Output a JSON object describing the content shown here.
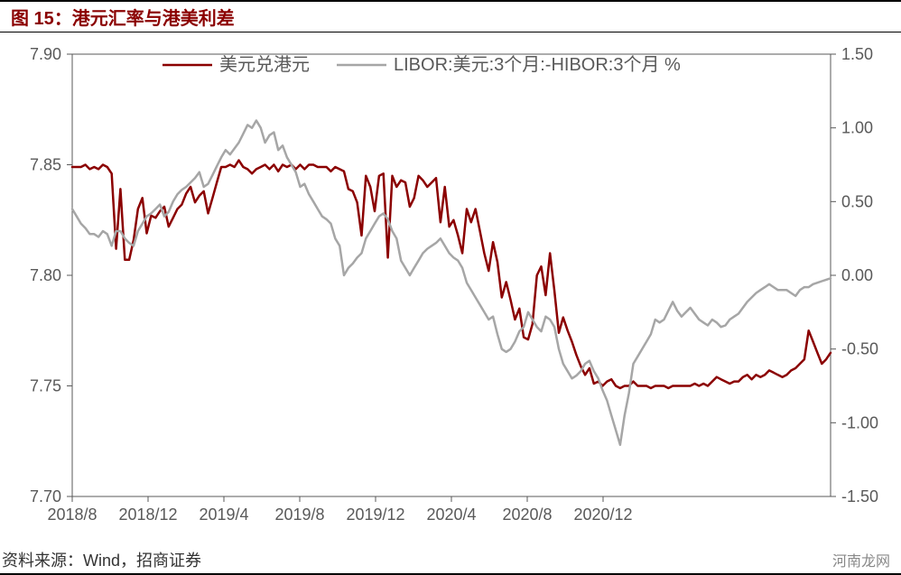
{
  "title": "图 15：港元汇率与港美利差",
  "source_label": "资料来源：Wind，招商证券",
  "watermark": "河南龙网",
  "chart": {
    "type": "line-dual-axis",
    "background_color": "#ffffff",
    "plot_border_color": "#595959",
    "plot_border_width": 1,
    "grid_color": "#d9d9d9",
    "tick_color": "#595959",
    "tick_length": 6,
    "axis_label_fontsize": 18,
    "legend_fontsize": 20,
    "legend": {
      "position": "top-inside",
      "items": [
        {
          "label": "美元兑港元",
          "color": "#8b0000",
          "line_width": 2.5
        },
        {
          "label": "LIBOR:美元:3个月:-HIBOR:3个月 %",
          "color": "#a6a6a6",
          "line_width": 2.5
        }
      ]
    },
    "x_axis": {
      "categories": [
        "2018/8",
        "2018/12",
        "2019/4",
        "2019/8",
        "2019/12",
        "2020/4",
        "2020/8",
        "2020/12"
      ],
      "ticks_between_last_and_end": 3
    },
    "y_left": {
      "min": 7.7,
      "max": 7.9,
      "step": 0.05,
      "labels": [
        "7.70",
        "7.75",
        "7.80",
        "7.85",
        "7.90"
      ],
      "color": "#595959"
    },
    "y_right": {
      "min": -1.5,
      "max": 1.5,
      "step": 0.5,
      "labels": [
        "-1.50",
        "-1.00",
        "-0.50",
        "0.00",
        "0.50",
        "1.00",
        "1.50"
      ],
      "color": "#595959"
    },
    "series": [
      {
        "name": "usd_hkd",
        "axis": "left",
        "color": "#8b0000",
        "line_width": 2.5,
        "data": [
          7.849,
          7.849,
          7.849,
          7.85,
          7.848,
          7.849,
          7.848,
          7.85,
          7.849,
          7.846,
          7.812,
          7.839,
          7.807,
          7.807,
          7.816,
          7.83,
          7.835,
          7.819,
          7.827,
          7.826,
          7.829,
          7.831,
          7.822,
          7.826,
          7.83,
          7.832,
          7.837,
          7.84,
          7.833,
          7.836,
          7.838,
          7.828,
          7.835,
          7.842,
          7.849,
          7.849,
          7.85,
          7.849,
          7.852,
          7.849,
          7.848,
          7.846,
          7.848,
          7.849,
          7.85,
          7.848,
          7.85,
          7.847,
          7.85,
          7.849,
          7.85,
          7.848,
          7.85,
          7.848,
          7.85,
          7.85,
          7.849,
          7.849,
          7.849,
          7.847,
          7.849,
          7.848,
          7.847,
          7.839,
          7.838,
          7.833,
          7.818,
          7.845,
          7.84,
          7.829,
          7.845,
          7.846,
          7.808,
          7.845,
          7.84,
          7.843,
          7.842,
          7.831,
          7.835,
          7.845,
          7.843,
          7.84,
          7.842,
          7.844,
          7.824,
          7.84,
          7.822,
          7.825,
          7.818,
          7.81,
          7.83,
          7.824,
          7.83,
          7.82,
          7.81,
          7.802,
          7.815,
          7.806,
          7.79,
          7.797,
          7.789,
          7.78,
          7.785,
          7.772,
          7.771,
          7.778,
          7.8,
          7.804,
          7.791,
          7.81,
          7.793,
          7.774,
          7.781,
          7.775,
          7.77,
          7.764,
          7.759,
          7.755,
          7.758,
          7.751,
          7.752,
          7.75,
          7.752,
          7.753,
          7.75,
          7.749,
          7.75,
          7.75,
          7.752,
          7.75,
          7.75,
          7.75,
          7.749,
          7.75,
          7.75,
          7.75,
          7.749,
          7.75,
          7.75,
          7.75,
          7.75,
          7.75,
          7.751,
          7.75,
          7.751,
          7.75,
          7.752,
          7.754,
          7.753,
          7.752,
          7.751,
          7.752,
          7.752,
          7.754,
          7.755,
          7.753,
          7.755,
          7.754,
          7.755,
          7.757,
          7.756,
          7.755,
          7.754,
          7.755,
          7.757,
          7.758,
          7.76,
          7.762,
          7.775,
          7.77,
          7.765,
          7.76,
          7.762,
          7.765
        ]
      },
      {
        "name": "libor_hibor_spread",
        "axis": "right",
        "color": "#a6a6a6",
        "line_width": 2.5,
        "data": [
          0.45,
          0.4,
          0.35,
          0.32,
          0.28,
          0.28,
          0.26,
          0.3,
          0.28,
          0.2,
          0.3,
          0.3,
          0.25,
          0.22,
          0.2,
          0.3,
          0.35,
          0.4,
          0.42,
          0.45,
          0.48,
          0.4,
          0.43,
          0.5,
          0.55,
          0.58,
          0.6,
          0.63,
          0.66,
          0.7,
          0.6,
          0.62,
          0.68,
          0.74,
          0.8,
          0.85,
          0.82,
          0.86,
          0.9,
          0.96,
          1.02,
          1.0,
          1.05,
          1.0,
          0.9,
          0.95,
          0.97,
          0.85,
          0.88,
          0.8,
          0.75,
          0.7,
          0.6,
          0.62,
          0.55,
          0.5,
          0.45,
          0.4,
          0.38,
          0.35,
          0.25,
          0.2,
          0.0,
          0.05,
          0.08,
          0.12,
          0.15,
          0.25,
          0.3,
          0.35,
          0.4,
          0.42,
          0.38,
          0.3,
          0.25,
          0.1,
          0.05,
          0.0,
          0.05,
          0.1,
          0.15,
          0.18,
          0.2,
          0.22,
          0.25,
          0.2,
          0.15,
          0.12,
          0.1,
          0.05,
          -0.05,
          -0.1,
          -0.15,
          -0.2,
          -0.25,
          -0.3,
          -0.28,
          -0.4,
          -0.5,
          -0.52,
          -0.5,
          -0.45,
          -0.38,
          -0.35,
          -0.25,
          -0.3,
          -0.35,
          -0.38,
          -0.28,
          -0.3,
          -0.35,
          -0.5,
          -0.6,
          -0.65,
          -0.7,
          -0.68,
          -0.65,
          -0.6,
          -0.58,
          -0.65,
          -0.7,
          -0.78,
          -0.85,
          -0.95,
          -1.05,
          -1.15,
          -0.95,
          -0.8,
          -0.6,
          -0.55,
          -0.5,
          -0.45,
          -0.4,
          -0.3,
          -0.32,
          -0.3,
          -0.24,
          -0.18,
          -0.24,
          -0.28,
          -0.25,
          -0.22,
          -0.26,
          -0.3,
          -0.32,
          -0.34,
          -0.3,
          -0.32,
          -0.35,
          -0.34,
          -0.3,
          -0.28,
          -0.26,
          -0.22,
          -0.18,
          -0.15,
          -0.12,
          -0.1,
          -0.08,
          -0.06,
          -0.08,
          -0.1,
          -0.1,
          -0.1,
          -0.12,
          -0.14,
          -0.1,
          -0.08,
          -0.08,
          -0.06,
          -0.05,
          -0.04,
          -0.03,
          -0.02
        ]
      }
    ]
  }
}
